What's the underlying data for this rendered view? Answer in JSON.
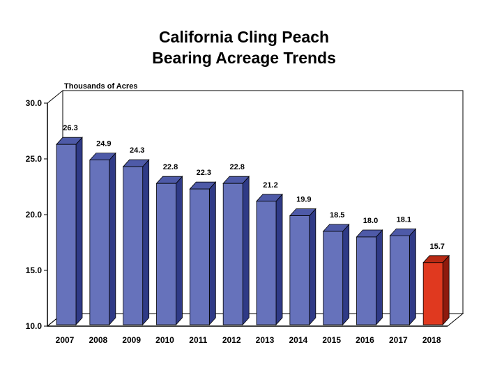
{
  "chart_data": {
    "type": "bar",
    "title_line1": "California Cling Peach",
    "title_line2": "Bearing Acreage Trends",
    "ylabel": "Thousands of Acres",
    "xlabel": "",
    "ylim": [
      10,
      30
    ],
    "yticks": [
      "10.0",
      "15.0",
      "20.0",
      "25.0",
      "30.0"
    ],
    "categories": [
      "2007",
      "2008",
      "2009",
      "2010",
      "2011",
      "2012",
      "2013",
      "2014",
      "2015",
      "2016",
      "2017",
      "2018"
    ],
    "values": [
      26.3,
      24.9,
      24.3,
      22.8,
      22.3,
      22.8,
      21.2,
      19.9,
      18.5,
      18.0,
      18.1,
      15.7
    ],
    "value_labels": [
      "26.3",
      "24.9",
      "24.3",
      "22.8",
      "22.3",
      "22.8",
      "21.2",
      "19.9",
      "18.5",
      "18.0",
      "18.1",
      "15.7"
    ],
    "highlight_index": 11,
    "colors": {
      "bar_front": "#6672bb",
      "bar_side": "#2f3a86",
      "bar_top": "#4e5aa8",
      "highlight_front": "#e0391f",
      "highlight_side": "#8e1a0d",
      "highlight_top": "#b82a14",
      "frame": "#000000"
    }
  }
}
